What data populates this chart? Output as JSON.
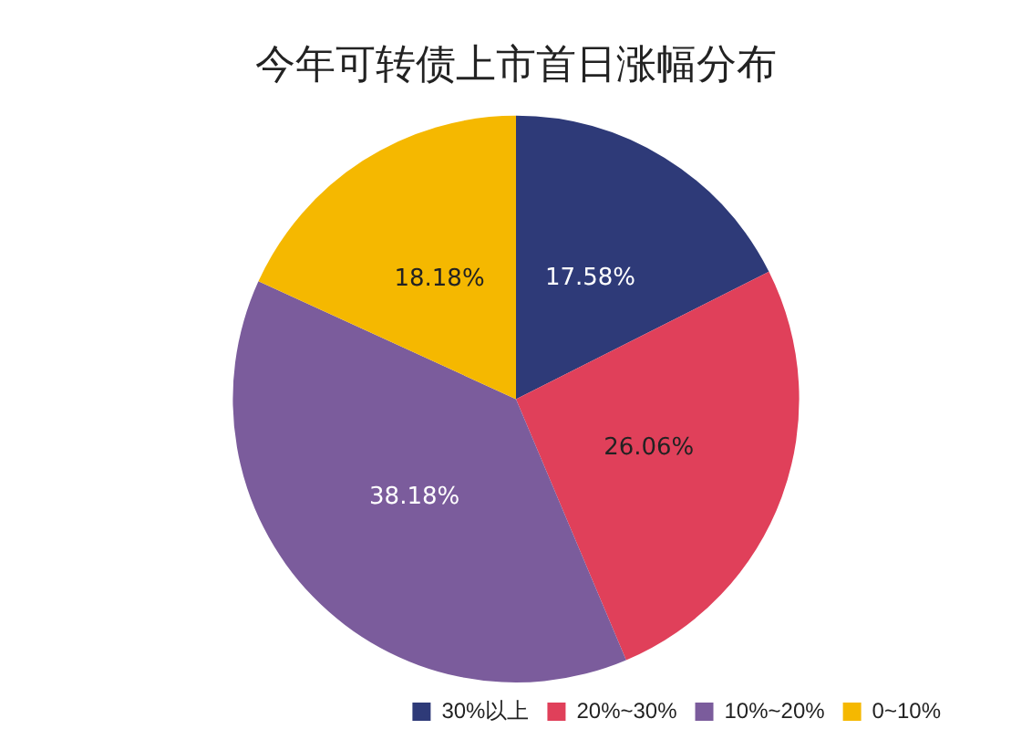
{
  "chart_data": {
    "type": "pie",
    "title": "今年可转债上市首日涨幅分布",
    "categories": [
      "30%以上",
      "20%~30%",
      "10%~20%",
      "0~10%"
    ],
    "values": [
      17.58,
      26.06,
      38.18,
      18.18
    ],
    "colors": [
      "#2e3a78",
      "#e0405a",
      "#7b5c9c",
      "#f5b800"
    ],
    "value_labels": [
      "17.58%",
      "26.06%",
      "38.18%",
      "18.18%"
    ],
    "legend": "bottom right"
  }
}
